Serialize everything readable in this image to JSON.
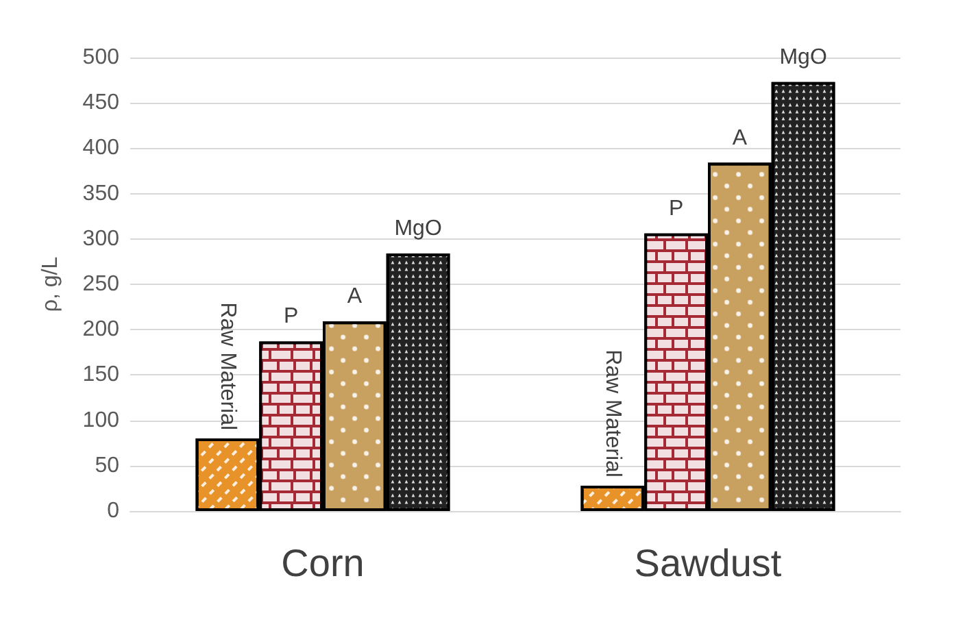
{
  "chart_data": {
    "type": "bar",
    "ylabel": "ρ, g/L",
    "categories": [
      "Corn",
      "Sawdust"
    ],
    "series": [
      {
        "name": "Raw Material",
        "color": "#e8922a",
        "values": [
          80,
          28
        ]
      },
      {
        "name": "P",
        "color": "#a52a35",
        "values": [
          187,
          306
        ]
      },
      {
        "name": "A",
        "color": "#c8a060",
        "values": [
          209,
          384
        ]
      },
      {
        "name": "MgO",
        "color": "#222222",
        "values": [
          284,
          473
        ]
      }
    ],
    "ylim": [
      0,
      500
    ],
    "yticks": [
      0,
      50,
      100,
      150,
      200,
      250,
      300,
      350,
      400,
      450,
      500
    ],
    "grid": "y",
    "legend": false
  }
}
